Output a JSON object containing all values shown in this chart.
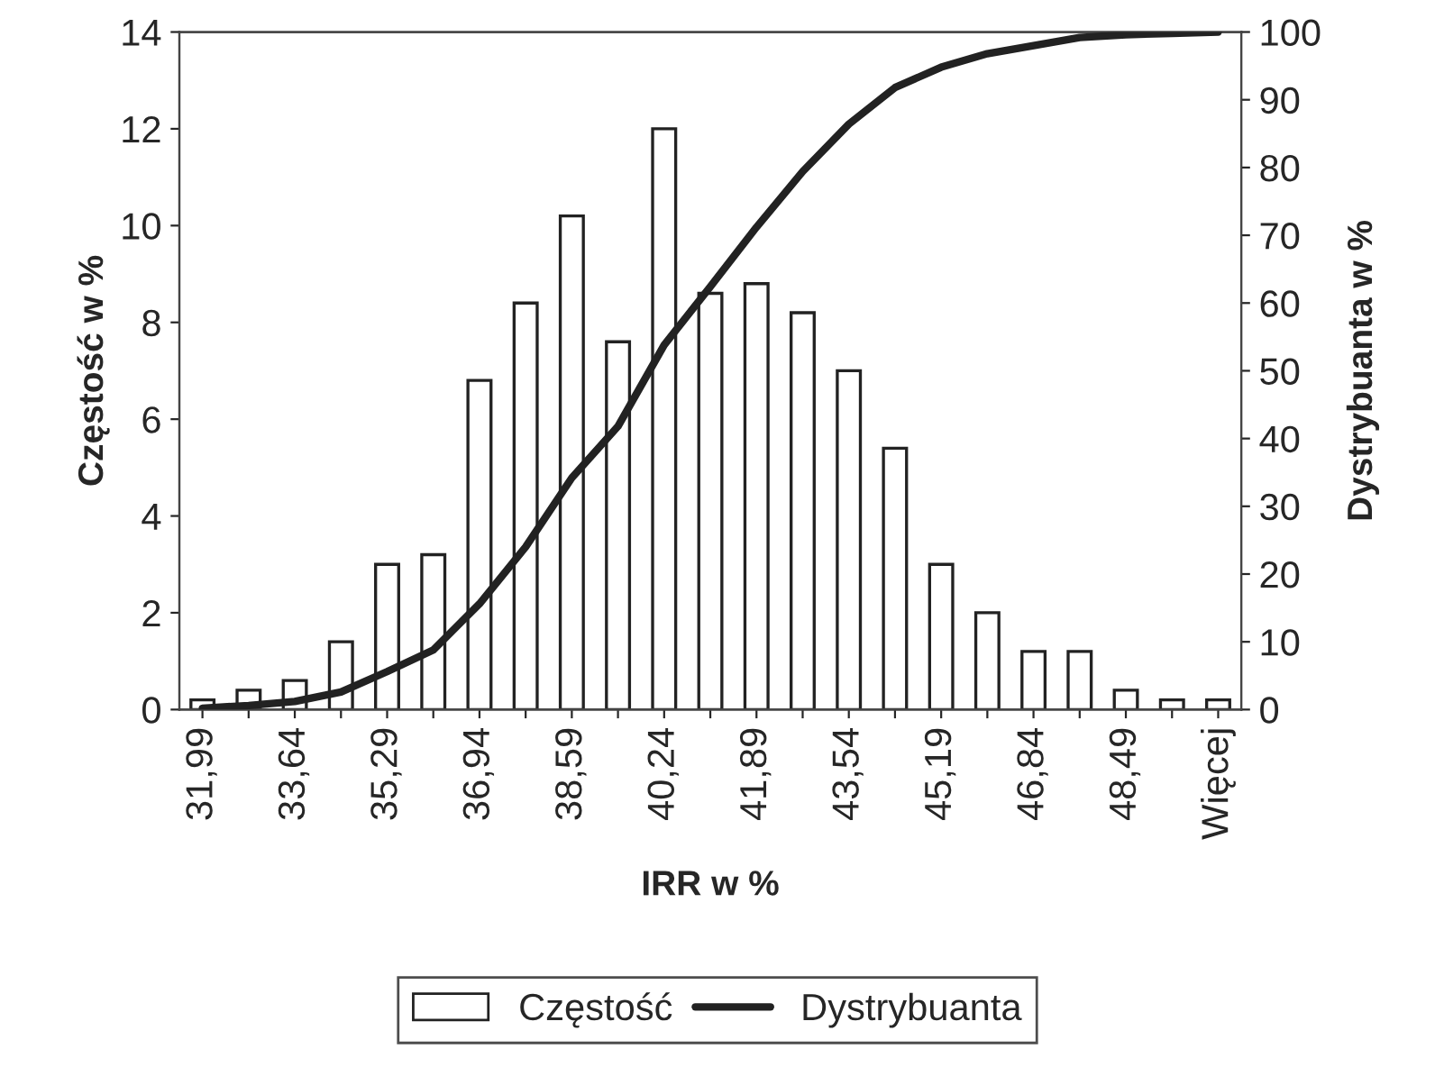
{
  "chart_data": {
    "type": "bar",
    "xlabel": "IRR w %",
    "ylabel": "Częstość w %",
    "y2label": "Dystrybuanta w %",
    "categories": [
      "31,99",
      null,
      "33,64",
      null,
      "35,29",
      null,
      "36,94",
      null,
      "38,59",
      null,
      "40,24",
      null,
      "41,89",
      null,
      "43,54",
      null,
      "45,19",
      null,
      "46,84",
      null,
      "48,49",
      null,
      "Więcej"
    ],
    "series": [
      {
        "name": "Częstość",
        "color": "#ffffff",
        "values": [
          0.2,
          0.4,
          0.6,
          1.4,
          3.0,
          3.2,
          6.8,
          8.4,
          10.2,
          7.6,
          12.0,
          8.6,
          8.8,
          8.2,
          7.0,
          5.4,
          3.0,
          2.0,
          1.2,
          1.2,
          0.4,
          0.2,
          0.2
        ]
      },
      {
        "name": "Dystrybuanta",
        "type": "line",
        "axis": "y2",
        "color": "#222222",
        "values": [
          0.2,
          0.6,
          1.2,
          2.6,
          5.6,
          8.8,
          15.6,
          24,
          34.2,
          41.8,
          53.8,
          62.4,
          71.2,
          79.4,
          86.4,
          91.8,
          94.8,
          96.8,
          98,
          99.2,
          99.6,
          99.8,
          100
        ]
      }
    ],
    "ylim": [
      0,
      14
    ],
    "yticks": [
      0,
      2,
      4,
      6,
      8,
      10,
      12,
      14
    ],
    "y2lim": [
      0,
      100
    ],
    "y2ticks": [
      0,
      10,
      20,
      30,
      40,
      50,
      60,
      70,
      80,
      90,
      100
    ],
    "grid": false,
    "legend": "bottom",
    "marker": "none",
    "line_style": "solid"
  }
}
